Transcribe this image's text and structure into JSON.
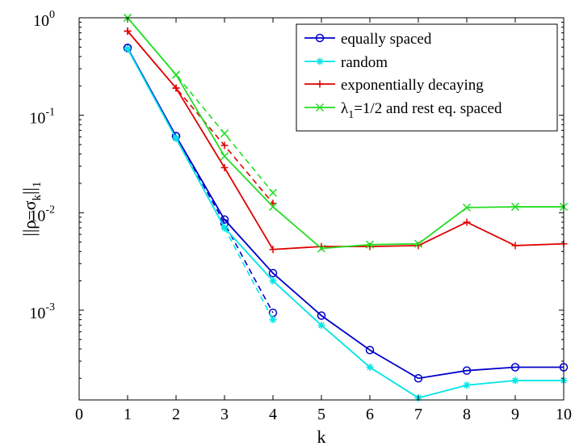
{
  "chart_data": {
    "type": "line",
    "yscale": "log",
    "xlabel": "k",
    "ylabel": "||ρ−σ",
    "ylabel_sub": "k",
    "ylabel_end": "||",
    "ylabel_end_sub": "1",
    "xlim": [
      0,
      10
    ],
    "ylim": [
      0.00012,
      1
    ],
    "xticks": [
      "0",
      "1",
      "2",
      "3",
      "4",
      "5",
      "6",
      "7",
      "8",
      "9",
      "10"
    ],
    "yticks": [
      {
        "value": 1,
        "base": "10",
        "exp": "0"
      },
      {
        "value": 0.1,
        "base": "10",
        "exp": "-1"
      },
      {
        "value": 0.01,
        "base": "10",
        "exp": "-2"
      },
      {
        "value": 0.001,
        "base": "10",
        "exp": "-3"
      }
    ],
    "grid": false,
    "legend_position": "top-right",
    "series": [
      {
        "name": "equally spaced",
        "color": "#0000cc",
        "marker": "circle",
        "x": [
          1,
          2,
          3,
          4,
          5,
          6,
          7,
          8,
          9,
          10
        ],
        "y": [
          0.49,
          0.061,
          0.0085,
          0.0024,
          0.00088,
          0.00039,
          0.0002,
          0.00024,
          0.00026,
          0.00026
        ]
      },
      {
        "name": "random",
        "color": "#00e5e5",
        "marker": "star",
        "x": [
          1,
          2,
          3,
          4,
          5,
          6,
          7,
          8,
          9,
          10
        ],
        "y": [
          0.48,
          0.058,
          0.007,
          0.002,
          0.0007,
          0.00026,
          0.000126,
          0.00017,
          0.00019,
          0.00019
        ]
      },
      {
        "name": "exponentially decaying",
        "color": "#e00000",
        "marker": "plus",
        "x": [
          1,
          2,
          3,
          4,
          5,
          6,
          7,
          8,
          9,
          10
        ],
        "y": [
          0.73,
          0.19,
          0.029,
          0.0042,
          0.0045,
          0.0045,
          0.0046,
          0.008,
          0.0046,
          0.0048
        ]
      },
      {
        "name_parts": {
          "lambda": "λ",
          "sub": "1",
          "rest": "=1/2 and rest eq. spaced"
        },
        "color": "#22dd22",
        "marker": "x",
        "x": [
          1,
          2,
          3,
          4,
          5,
          6,
          7,
          8,
          9,
          10
        ],
        "y": [
          1.0,
          0.26,
          0.038,
          0.0115,
          0.0043,
          0.0047,
          0.0048,
          0.0113,
          0.0115,
          0.0115
        ]
      }
    ],
    "dashed_series": [
      {
        "color": "#0000cc",
        "marker": "circle",
        "x": [
          1,
          2,
          3,
          4
        ],
        "y": [
          0.49,
          0.061,
          0.0078,
          0.00094
        ]
      },
      {
        "color": "#00e5e5",
        "marker": "star",
        "x": [
          1,
          2,
          3,
          4
        ],
        "y": [
          0.48,
          0.058,
          0.007,
          0.0008
        ]
      },
      {
        "color": "#e00000",
        "marker": "plus",
        "x": [
          1,
          2,
          3,
          4
        ],
        "y": [
          0.73,
          0.19,
          0.049,
          0.0125
        ]
      },
      {
        "color": "#22dd22",
        "marker": "x",
        "x": [
          1,
          2,
          3,
          4
        ],
        "y": [
          1.0,
          0.26,
          0.065,
          0.016
        ]
      }
    ]
  }
}
